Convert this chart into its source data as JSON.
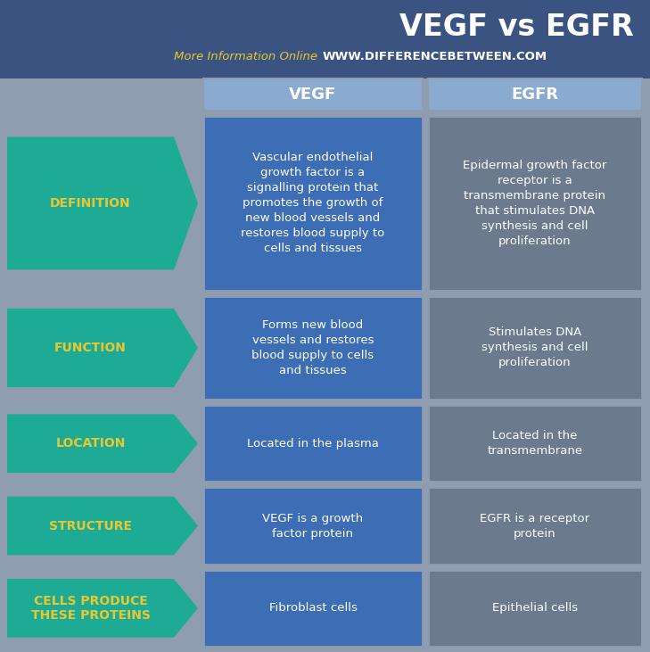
{
  "title": "VEGF vs EGFR",
  "subtitle_plain": "More Information Online",
  "subtitle_url": "WWW.DIFFERENCEBETWEEN.COM",
  "col1_header": "VEGF",
  "col2_header": "EGFR",
  "bg_color": "#8f9db0",
  "header_bg_color": "#3a5380",
  "col1_bg_color": "#3d6db5",
  "col2_bg_color": "#6b7b8d",
  "col_header_bg": "#8aaacf",
  "arrow_color": "#1dab96",
  "arrow_label_color": "#e8c832",
  "title_color": "#ffffff",
  "subtitle_plain_color": "#e8c832",
  "subtitle_url_color": "#ffffff",
  "col_text_color": "#ffffff",
  "rows": [
    {
      "label": "DEFINITION",
      "vegf": "Vascular endothelial\ngrowth factor is a\nsignalling protein that\npromotes the growth of\nnew blood vessels and\nrestores blood supply to\ncells and tissues",
      "egfr": "Epidermal growth factor\nreceptor is a\ntransmembrane protein\nthat stimulates DNA\nsynthesis and cell\nproliferation"
    },
    {
      "label": "FUNCTION",
      "vegf": "Forms new blood\nvessels and restores\nblood supply to cells\nand tissues",
      "egfr": "Stimulates DNA\nsynthesis and cell\nproliferation"
    },
    {
      "label": "LOCATION",
      "vegf": "Located in the plasma",
      "egfr": "Located in the\ntransmembrane"
    },
    {
      "label": "STRUCTURE",
      "vegf": "VEGF is a growth\nfactor protein",
      "egfr": "EGFR is a receptor\nprotein"
    },
    {
      "label": "CELLS PRODUCE\nTHESE PROTEINS",
      "vegf": "Fibroblast cells",
      "egfr": "Epithelial cells"
    }
  ],
  "figsize": [
    7.29,
    7.31
  ],
  "dpi": 100
}
